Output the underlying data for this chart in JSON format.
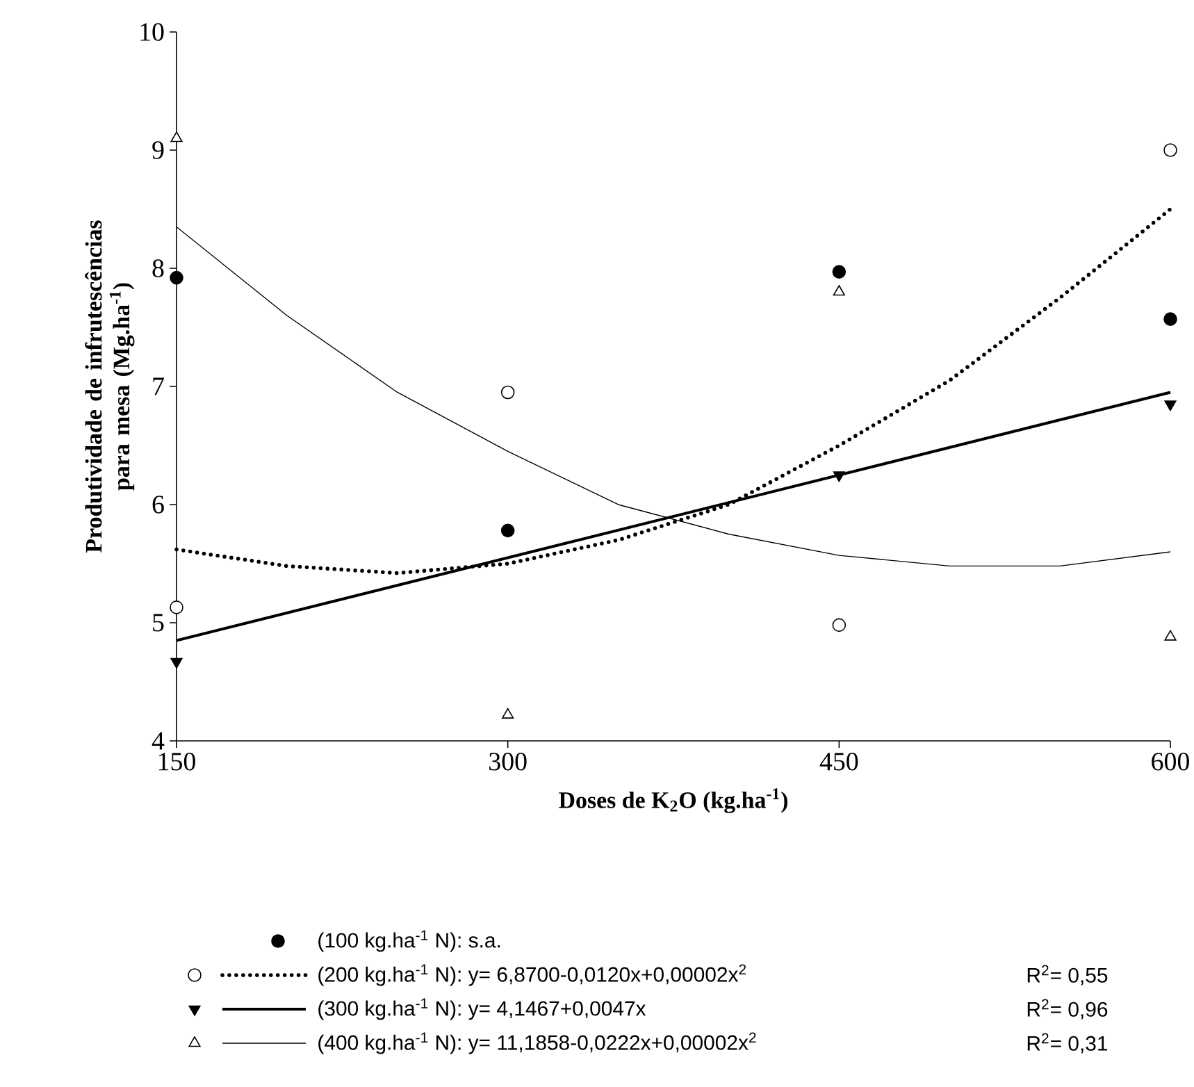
{
  "chart_data": {
    "type": "scatter",
    "xlabel": "Doses de K$_{2}$O (kg.ha$^{-1}$)",
    "ylabel": "Produtividade de infrutescências para mesa (Mg.ha$^{-1}$)",
    "x": [
      150,
      300,
      450,
      600
    ],
    "xlim": [
      150,
      600
    ],
    "ylim": [
      4,
      10
    ],
    "xticks": [
      150,
      300,
      450,
      600
    ],
    "yticks": [
      4,
      5,
      6,
      7,
      8,
      9,
      10
    ],
    "legend": "bottom",
    "grid": false,
    "series": [
      {
        "name": "(100 kg.ha$^{-1}$ N): s.a.",
        "color": "#000000",
        "marker": "circle",
        "values": [
          7.92,
          5.78,
          7.97,
          7.57
        ]
      },
      {
        "color": "#ffffff",
        "marker": "circle",
        "values": [
          5.13,
          6.95,
          4.98,
          9.0
        ]
      },
      {
        "color": "#000000",
        "marker": "triangle-down",
        "values": [
          4.67,
          null,
          6.25,
          6.85
        ]
      },
      {
        "color": "#ffffff",
        "marker": "triangle",
        "values": [
          9.1,
          4.22,
          7.8,
          4.88
        ]
      },
      {
        "type": "line",
        "name": "(200 kg.ha$^{-1}$ N): y= 6,8700-0,0120x+0,00002x$^{2}$",
        "color": "#000000",
        "line_style": "dotted",
        "marker": "none",
        "x": [
          150,
          200,
          250,
          300,
          350,
          400,
          450,
          500,
          550,
          600
        ],
        "values": [
          5.62,
          5.48,
          5.42,
          5.5,
          5.7,
          6.0,
          6.5,
          7.05,
          7.75,
          8.5
        ]
      },
      {
        "type": "line",
        "name": "(300 kg.ha$^{-1}$ N): y= 4,1467+0,0047x",
        "color": "#000000",
        "line_style": "solid",
        "marker": "none",
        "x": [
          150,
          600
        ],
        "values": [
          4.85,
          6.95
        ]
      },
      {
        "type": "line",
        "name": "(400 kg.ha$^{-1}$ N): y= 11,1858-0,0222x+0,00002x$^{2}$",
        "color": "#000000",
        "line_style": "solid",
        "marker": "none",
        "x": [
          150,
          200,
          250,
          300,
          350,
          400,
          450,
          500,
          550,
          600
        ],
        "values": [
          8.35,
          7.6,
          6.95,
          6.45,
          6.0,
          5.75,
          5.57,
          5.48,
          5.48,
          5.6
        ]
      }
    ],
    "annotations": [
      "R$^{2}$= 0,55",
      "R$^{2}$= 0,96",
      "R$^{2}$= 0,31"
    ]
  }
}
